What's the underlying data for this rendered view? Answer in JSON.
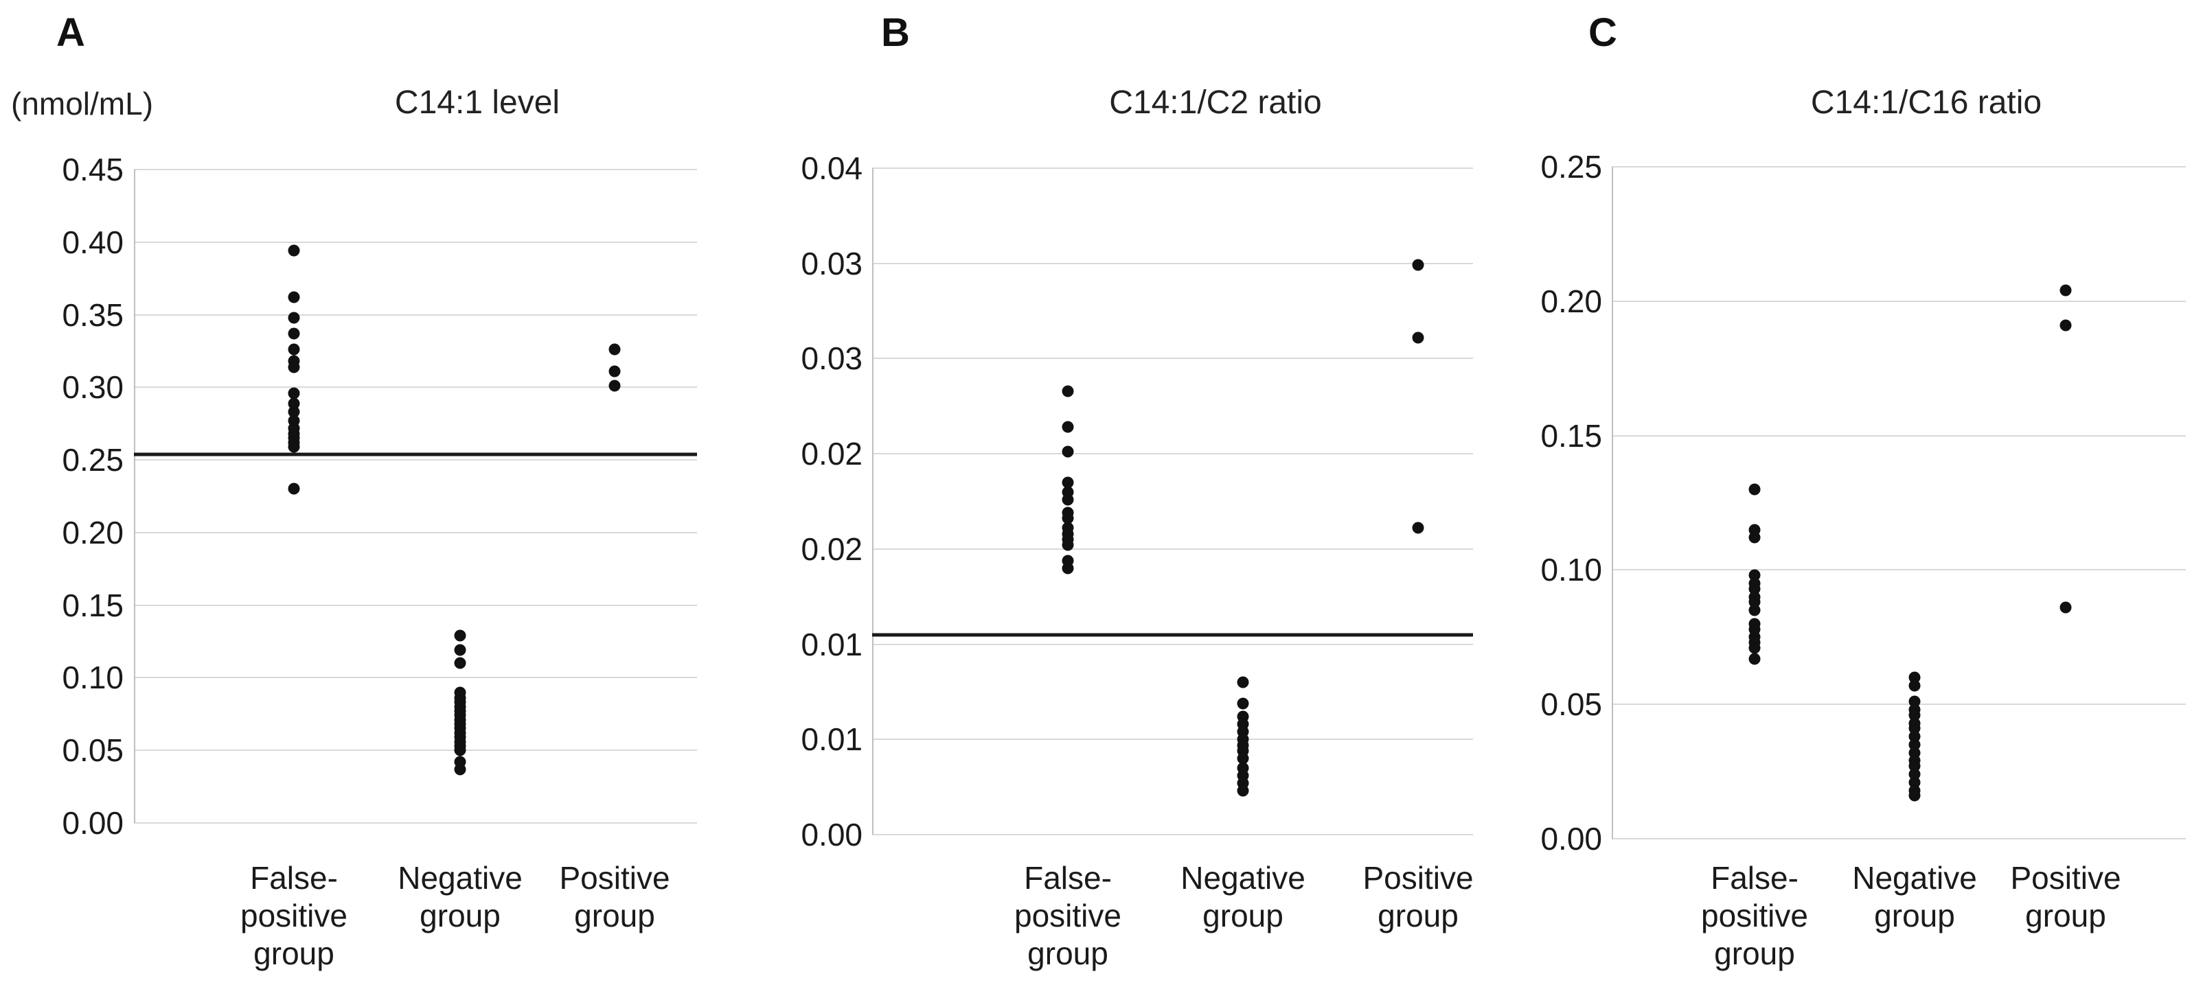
{
  "figure": {
    "background_color": "#ffffff",
    "text_color": "#1a1a1a",
    "gridline_color": "#d9d9d9",
    "axis_line_color": "#bfbfbf",
    "point_color": "#111111",
    "cutoff_line_color": "#1a1a1a"
  },
  "chart_data": [
    {
      "type": "scatter",
      "panel_letter": "A",
      "title": "C14:1 level",
      "y_axis_unit": "(nmol/mL)",
      "y_axis": {
        "min": 0,
        "max": 0.45,
        "tick_step": 0.05,
        "tick_labels": [
          "0.45",
          "0.40",
          "0.35",
          "0.30",
          "0.25",
          "0.20",
          "0.15",
          "0.10",
          "0.05",
          "0.00"
        ]
      },
      "grid": true,
      "legend": false,
      "cutoff_value": 0.254,
      "categories": [
        "False-positive group",
        "Negative group",
        "Positive group"
      ],
      "category_label_lines": [
        [
          "False-",
          "positive",
          "group"
        ],
        [
          "Negative",
          "group"
        ],
        [
          "Positive",
          "group"
        ]
      ],
      "series": [
        {
          "name": "False-positive group",
          "values": [
            0.394,
            0.362,
            0.348,
            0.337,
            0.326,
            0.318,
            0.314,
            0.296,
            0.289,
            0.283,
            0.277,
            0.272,
            0.268,
            0.265,
            0.262,
            0.259,
            0.23
          ]
        },
        {
          "name": "Negative group",
          "values": [
            0.129,
            0.119,
            0.11,
            0.09,
            0.086,
            0.083,
            0.08,
            0.077,
            0.074,
            0.071,
            0.068,
            0.065,
            0.062,
            0.059,
            0.056,
            0.053,
            0.05,
            0.042,
            0.037
          ]
        },
        {
          "name": "Positive group",
          "values": [
            0.326,
            0.311,
            0.301
          ]
        }
      ]
    },
    {
      "type": "scatter",
      "panel_letter": "B",
      "title": "C14:1/C2 ratio",
      "y_axis_unit": "",
      "y_axis": {
        "min": 0,
        "max": 0.035,
        "tick_step": 0.005,
        "tick_labels": [
          "0.04",
          "0.03",
          "0.03",
          "0.02",
          "0.02",
          "0.01",
          "0.01",
          "0.00"
        ]
      },
      "grid": true,
      "legend": false,
      "cutoff_value": 0.0105,
      "categories": [
        "False-positive group",
        "Negative group",
        "Positive group"
      ],
      "category_label_lines": [
        [
          "False-",
          "positive",
          "group"
        ],
        [
          "Negative",
          "group"
        ],
        [
          "Positive",
          "group"
        ]
      ],
      "series": [
        {
          "name": "False-positive group",
          "values": [
            0.0233,
            0.0214,
            0.0201,
            0.0185,
            0.018,
            0.0176,
            0.0169,
            0.0166,
            0.0161,
            0.0158,
            0.0155,
            0.0152,
            0.0144,
            0.014
          ]
        },
        {
          "name": "Negative group",
          "values": [
            0.008,
            0.0069,
            0.0062,
            0.0058,
            0.0054,
            0.005,
            0.0047,
            0.0044,
            0.004,
            0.0035,
            0.0031,
            0.0027,
            0.0023
          ]
        },
        {
          "name": "Positive group",
          "values": [
            0.0299,
            0.0261,
            0.0161
          ]
        }
      ]
    },
    {
      "type": "scatter",
      "panel_letter": "C",
      "title": "C14:1/C16 ratio",
      "y_axis_unit": "",
      "y_axis": {
        "min": 0,
        "max": 0.25,
        "tick_step": 0.05,
        "tick_labels": [
          "0.25",
          "0.20",
          "0.15",
          "0.10",
          "0.05",
          "0.00"
        ]
      },
      "grid": true,
      "legend": false,
      "cutoff_value": null,
      "categories": [
        "False-positive group",
        "Negative group",
        "Positive group"
      ],
      "category_label_lines": [
        [
          "False-",
          "positive",
          "group"
        ],
        [
          "Negative",
          "group"
        ],
        [
          "Positive",
          "group"
        ]
      ],
      "series": [
        {
          "name": "False-positive group",
          "values": [
            0.13,
            0.115,
            0.112,
            0.098,
            0.095,
            0.093,
            0.09,
            0.088,
            0.085,
            0.08,
            0.078,
            0.075,
            0.073,
            0.071,
            0.067
          ]
        },
        {
          "name": "Negative group",
          "values": [
            0.06,
            0.057,
            0.051,
            0.048,
            0.046,
            0.043,
            0.041,
            0.038,
            0.035,
            0.032,
            0.029,
            0.027,
            0.024,
            0.021,
            0.018,
            0.016
          ]
        },
        {
          "name": "Positive group",
          "values": [
            0.204,
            0.191,
            0.086
          ]
        }
      ]
    }
  ]
}
